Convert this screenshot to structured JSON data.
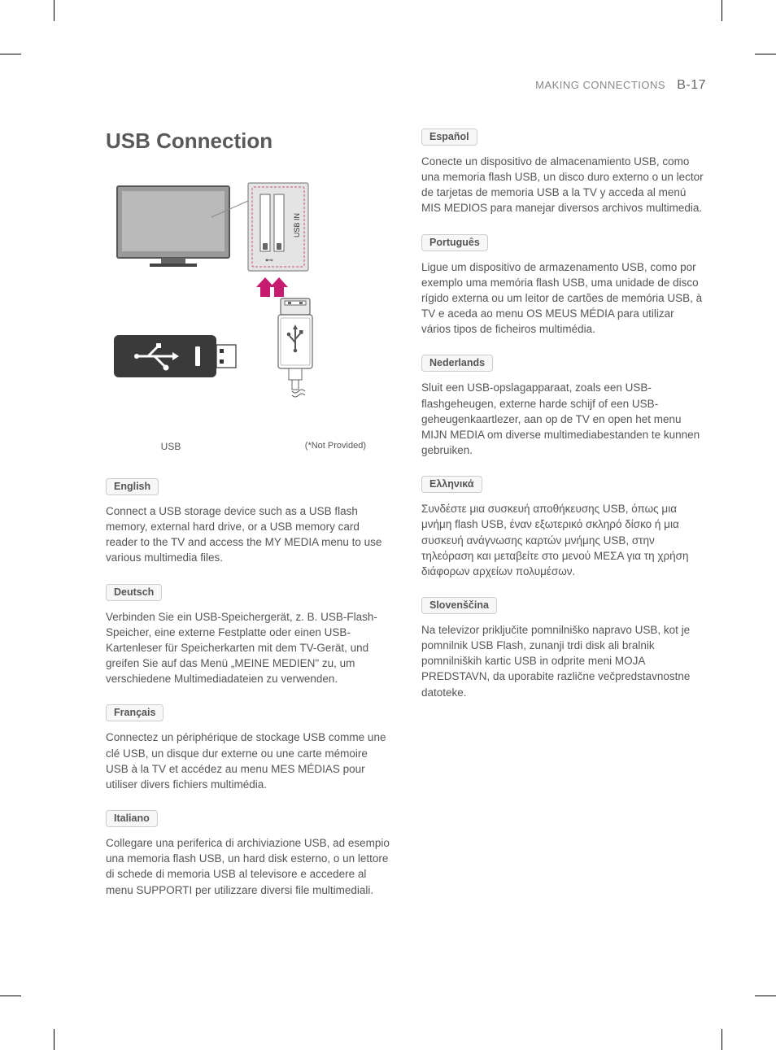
{
  "header": {
    "section": "MAKING CONNECTIONS",
    "page_number": "B-17"
  },
  "title": "USB Connection",
  "diagram": {
    "usb_in_label": "USB IN",
    "usb_label": "USB",
    "not_provided": "(*Not Provided)",
    "colors": {
      "tv_fill": "#9a9a9a",
      "tv_stroke": "#555555",
      "port_panel_fill": "#e4e4e4",
      "port_panel_stroke": "#888888",
      "port_panel_dash": "#c34b84",
      "arrow_fill": "#c61b6f",
      "usb_drive_fill": "#3a3a3a",
      "usb_drive_tip": "#ffffff",
      "cable_stroke": "#666666",
      "connector_fill": "#e8e8e8"
    }
  },
  "languages": {
    "col1": [
      {
        "label": "English",
        "text": "Connect a USB storage device such as a USB flash memory, external hard drive, or a USB memory card reader to the TV and access the MY MEDIA menu to use various multimedia files."
      },
      {
        "label": "Deutsch",
        "text": "Verbinden Sie ein USB-Speichergerät, z. B. USB-Flash-Speicher, eine externe Festplatte oder einen USB-Kartenleser für Speicherkarten mit dem TV-Gerät, und greifen Sie auf das Menü „MEINE MEDIEN\" zu, um verschiedene Multimediadateien zu verwenden."
      },
      {
        "label": "Français",
        "text": "Connectez un périphérique de stockage USB comme une clé USB, un disque dur externe ou une carte mémoire USB à la TV et accédez au menu MES MÉDIAS pour utiliser divers fichiers multimédia."
      },
      {
        "label": "Italiano",
        "text": "Collegare una periferica di archiviazione USB, ad esempio una memoria flash USB, un hard disk esterno, o un lettore di schede di memoria USB al televisore e accedere al menu SUPPORTI per utilizzare diversi file multimediali."
      }
    ],
    "col2": [
      {
        "label": "Español",
        "text": "Conecte un dispositivo de almacenamiento USB, como una memoria flash USB, un disco duro externo o un lector de tarjetas de memoria USB a la TV y acceda al menú MIS MEDIOS para manejar diversos archivos multimedia."
      },
      {
        "label": "Português",
        "text": "Ligue um dispositivo de armazenamento USB, como por exemplo uma memória flash USB, uma unidade de disco rígido externa ou um leitor de cartões de memória USB, à TV e aceda ao menu OS MEUS MÉDIA para utilizar vários tipos de ficheiros multimédia."
      },
      {
        "label": "Nederlands",
        "text": "Sluit een USB-opslagapparaat, zoals een USB-flashgeheugen, externe harde schijf of een USB-geheugenkaartlezer, aan op de TV en open het menu MIJN MEDIA om diverse multimediabestanden te kunnen gebruiken."
      },
      {
        "label": "Ελληνικά",
        "text": "Συνδέστε μια συσκευή αποθήκευσης USB, όπως μια μνήμη flash USB, έναν εξωτερικό σκληρό δίσκο ή μια συσκευή ανάγνωσης καρτών μνήμης USB, στην τηλεόραση και μεταβείτε στο μενού ΜΕΣΑ για τη χρήση διάφορων αρχείων πολυμέσων."
      },
      {
        "label": "Slovenščina",
        "text": "Na televizor priključite pomnilniško napravo USB, kot je pomnilnik USB Flash, zunanji trdi disk ali bralnik pomnilniških kartic USB in odprite meni MOJA PREDSTAVN, da uporabite različne večpredstavnostne datoteke."
      }
    ]
  }
}
